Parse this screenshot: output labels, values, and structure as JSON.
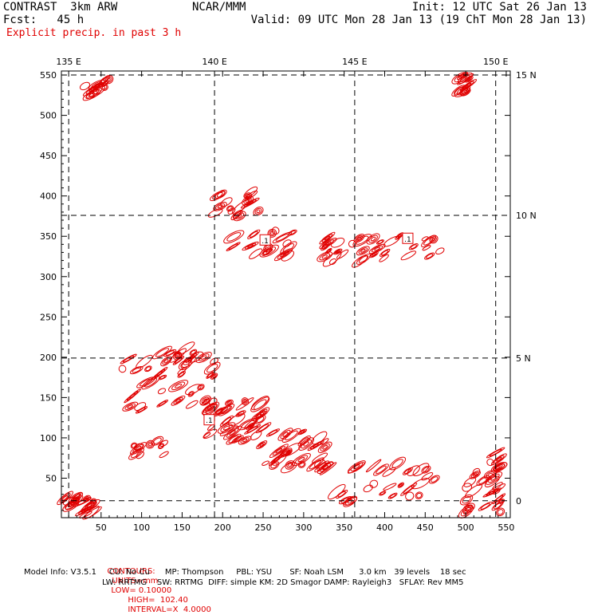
{
  "header": {
    "model": "CONTRAST  3km ARW",
    "org": "NCAR/MMM",
    "init": "Init: 12 UTC Sat 26 Jan 13",
    "fcst": "Fcst:   45 h",
    "valid": "Valid: 09 UTC Mon 28 Jan 13 (19 ChT Mon 28 Jan 13)",
    "field": "Explicit precip. in past 3 h"
  },
  "chart_data": {
    "type": "contour",
    "title": "Explicit precip. in past 3 h",
    "xlim": [
      1,
      555
    ],
    "ylim": [
      1,
      555
    ],
    "x_ticks": [
      50,
      100,
      150,
      200,
      250,
      300,
      350,
      400,
      450,
      500,
      550
    ],
    "y_ticks": [
      50,
      100,
      150,
      200,
      250,
      300,
      350,
      400,
      450,
      500,
      550
    ],
    "lon_labels": [
      {
        "label": "135 E",
        "x": 10
      },
      {
        "label": "140 E",
        "x": 190
      },
      {
        "label": "145 E",
        "x": 363
      },
      {
        "label": "150 E",
        "x": 537
      }
    ],
    "lat_labels": [
      {
        "label": "15 N",
        "y": 550
      },
      {
        "label": "10 N",
        "y": 376
      },
      {
        "label": "5 N",
        "y": 199
      },
      {
        "label": "0",
        "y": 22
      }
    ],
    "grid": true,
    "contours": {
      "units": "mm",
      "low": 0.1,
      "high": 102.4,
      "interval": "X 4.0000",
      "color": "#e00000",
      "regions": [
        {
          "x": [
            180,
            255
          ],
          "y": [
            88,
            150
          ],
          "weight": 5
        },
        {
          "x": [
            250,
            330
          ],
          "y": [
            62,
            110
          ],
          "weight": 4
        },
        {
          "x": [
            330,
            470
          ],
          "y": [
            20,
            70
          ],
          "weight": 4
        },
        {
          "x": [
            70,
            190
          ],
          "y": [
            175,
            212
          ],
          "weight": 4
        },
        {
          "x": [
            85,
            195
          ],
          "y": [
            130,
            170
          ],
          "weight": 2
        },
        {
          "x": [
            90,
            130
          ],
          "y": [
            78,
            100
          ],
          "weight": 1
        },
        {
          "x": [
            500,
            545
          ],
          "y": [
            5,
            85
          ],
          "weight": 4
        },
        {
          "x": [
            3,
            45
          ],
          "y": [
            3,
            28
          ],
          "weight": 2
        },
        {
          "x": [
            190,
            245
          ],
          "y": [
            375,
            405
          ],
          "weight": 2
        },
        {
          "x": [
            210,
            290
          ],
          "y": [
            320,
            360
          ],
          "weight": 2
        },
        {
          "x": [
            325,
            375
          ],
          "y": [
            318,
            350
          ],
          "weight": 2
        },
        {
          "x": [
            370,
            470
          ],
          "y": [
            320,
            355
          ],
          "weight": 2
        },
        {
          "x": [
            30,
            60
          ],
          "y": [
            525,
            548
          ],
          "weight": 1
        },
        {
          "x": [
            490,
            505
          ],
          "y": [
            525,
            550
          ],
          "weight": 1
        }
      ]
    },
    "min_labels": [
      {
        "text": ".1",
        "x": 252,
        "y": 345
      },
      {
        "text": ".1",
        "x": 428,
        "y": 347
      },
      {
        "text": ".1",
        "x": 183,
        "y": 122
      }
    ]
  },
  "footer": {
    "contours": {
      "label": "CONTOURS:",
      "units": "UNITS=mm",
      "low": "LOW= 0.10000",
      "high": "HIGH=  102.40",
      "interval": "INTERVAL=X  4.0000"
    },
    "model_line1": "Model Info: V3.5.1     CU: No Cu      MP: Thompson     PBL: YSU       SF: Noah LSM      3.0 km   39 levels    18 sec",
    "model_line2": "LW: RRTMG    SW: RRTMG  DIFF: simple KM: 2D Smagor DAMP: Rayleigh3   SFLAY: Rev MM5"
  }
}
